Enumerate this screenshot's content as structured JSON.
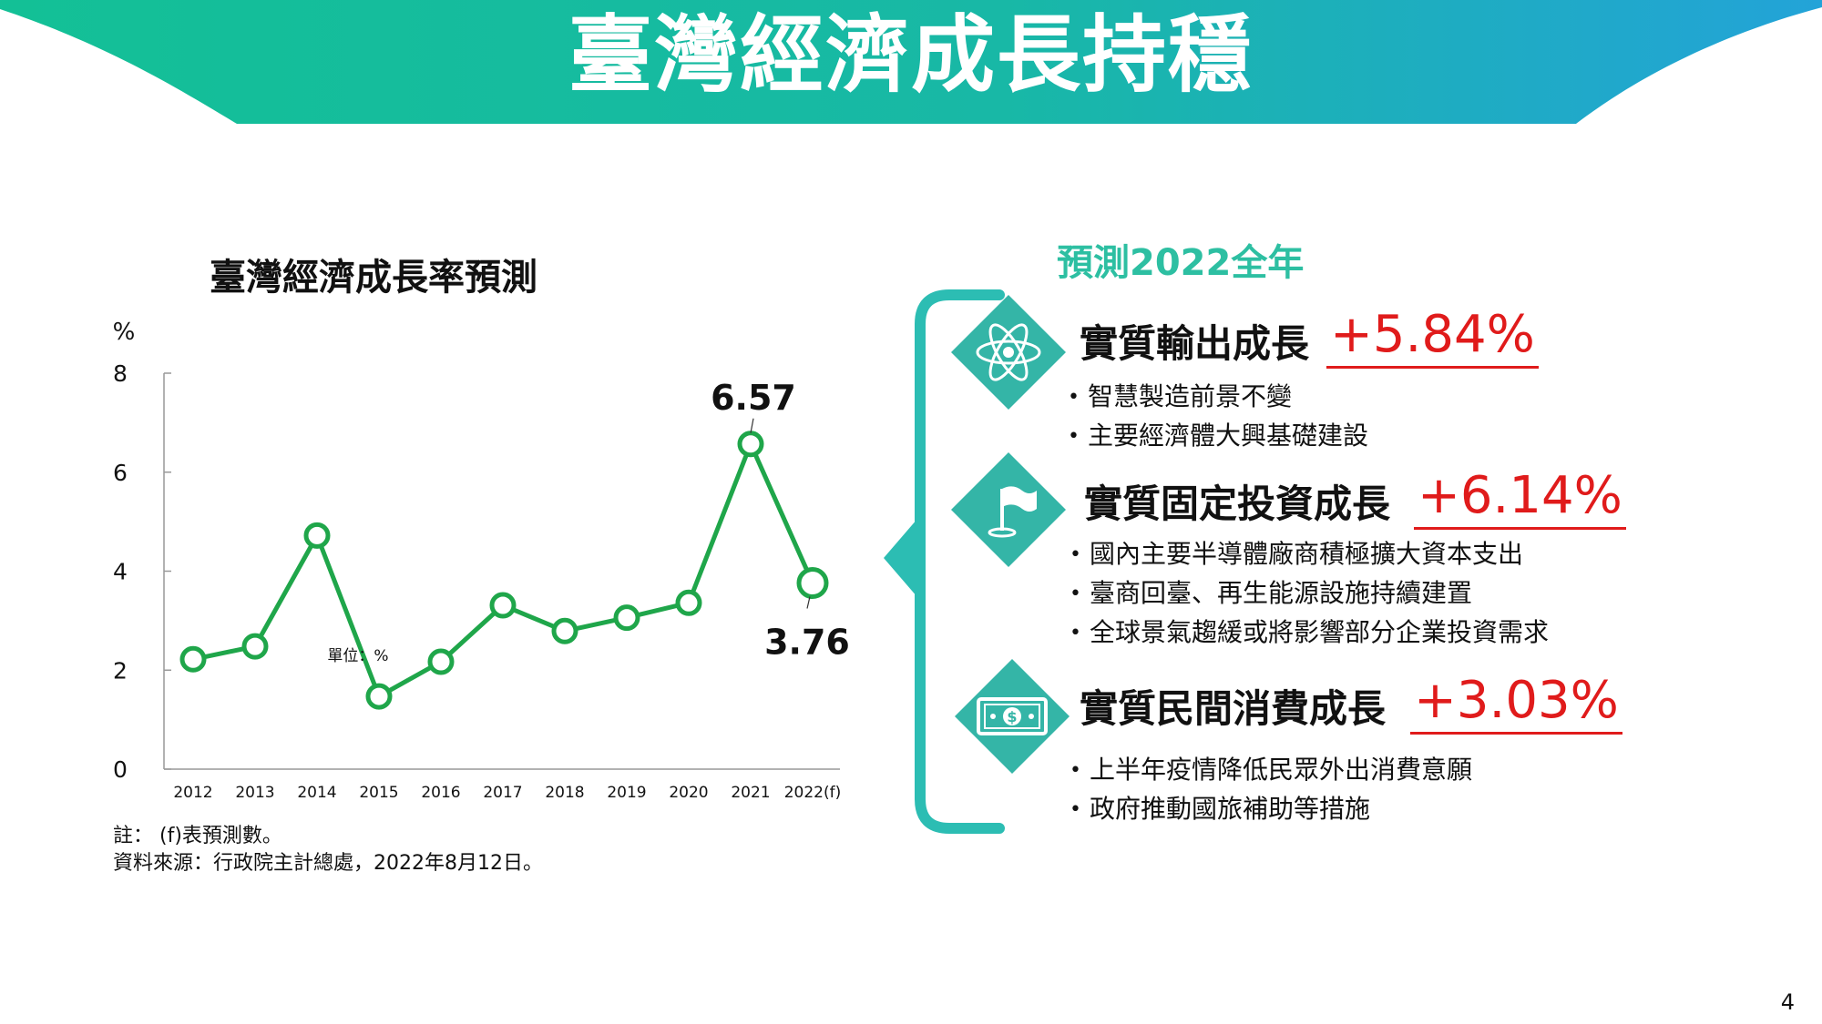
{
  "slide": {
    "title": "臺灣經濟成長持穩",
    "page_number": "4",
    "banner_colors": [
      "#17c29b",
      "#1fa8d4"
    ]
  },
  "chart_data": {
    "type": "line",
    "title": "臺灣經濟成長率預測",
    "y_unit": "%",
    "inline_note": "單位：%",
    "categories": [
      "2012",
      "2013",
      "2014",
      "2015",
      "2016",
      "2017",
      "2018",
      "2019",
      "2020",
      "2021",
      "2022(f)"
    ],
    "values": [
      2.22,
      2.48,
      4.72,
      1.47,
      2.17,
      3.31,
      2.79,
      3.06,
      3.36,
      6.57,
      3.76
    ],
    "ylim": [
      0,
      8
    ],
    "yticks": [
      "0",
      "2",
      "4",
      "6",
      "8"
    ],
    "data_labels": [
      {
        "category": "2021",
        "text": "6.57"
      },
      {
        "category": "2022(f)",
        "text": "3.76"
      }
    ],
    "line_color": "#1fa64a",
    "grid": false
  },
  "notes": {
    "note_line": "註： (f)表預測數。",
    "source_line": "資料來源：行政院主計總處，2022年8月12日。"
  },
  "forecast": {
    "heading": "預測2022全年",
    "sections": [
      {
        "icon": "atom-icon",
        "title": "實質輸出成長",
        "value": "+5.84%",
        "bullets": [
          "智慧製造前景不變",
          "主要經濟體大興基礎建設"
        ]
      },
      {
        "icon": "flag-icon",
        "title": "實質固定投資成長",
        "value": "+6.14%",
        "bullets": [
          "國內主要半導體廠商積極擴大資本支出",
          "臺商回臺、再生能源設施持續建置",
          "全球景氣趨緩或將影響部分企業投資需求"
        ]
      },
      {
        "icon": "money-icon",
        "title": "實質民間消費成長",
        "value": "+3.03%",
        "bullets": [
          "上半年疫情降低民眾外出消費意願",
          "政府推動國旅補助等措施"
        ]
      }
    ]
  }
}
